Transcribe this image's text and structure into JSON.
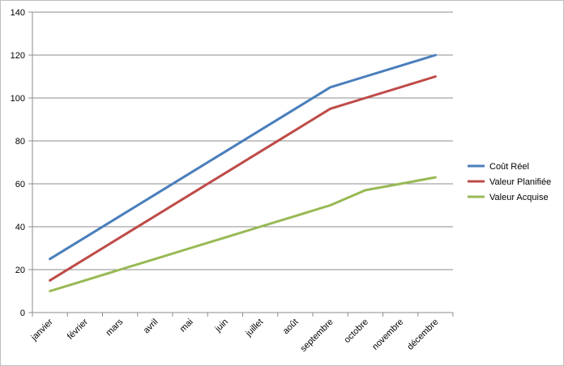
{
  "chart_data": {
    "type": "line",
    "categories": [
      "janvier",
      "février",
      "mars",
      "avril",
      "mai",
      "juin",
      "juillet",
      "août",
      "septembre",
      "octobre",
      "novembre",
      "décembre"
    ],
    "series": [
      {
        "name": "Coût Réel",
        "color": "#4a7ebb",
        "values": [
          25,
          35,
          45,
          55,
          65,
          75,
          85,
          95,
          105,
          110,
          115,
          120
        ]
      },
      {
        "name": "Valeur Planifiée",
        "color": "#be4b48",
        "values": [
          15,
          25,
          35,
          45,
          55,
          65,
          75,
          85,
          95,
          100,
          105,
          110
        ]
      },
      {
        "name": "Valeur Acquise",
        "color": "#98b954",
        "values": [
          10,
          15,
          20,
          25,
          30,
          35,
          40,
          45,
          50,
          57,
          60,
          63
        ]
      }
    ],
    "y_ticks": [
      "0",
      "20",
      "40",
      "60",
      "80",
      "100",
      "120",
      "140"
    ],
    "ylim": [
      0,
      140
    ],
    "grid": true,
    "legend_position": "right"
  }
}
